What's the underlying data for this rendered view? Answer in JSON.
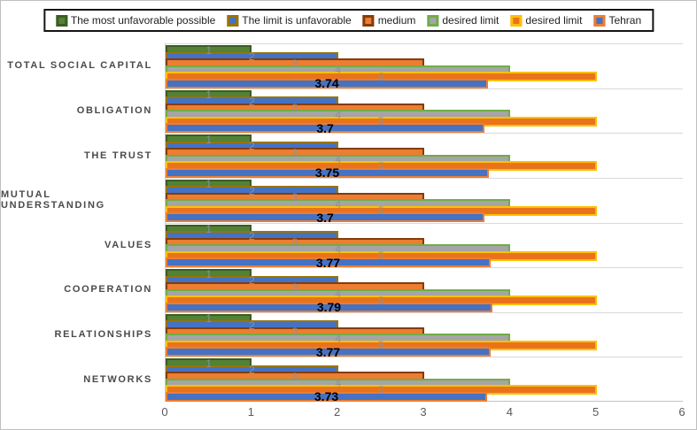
{
  "chart_data": {
    "type": "bar",
    "orientation": "horizontal",
    "title": "",
    "xlabel": "",
    "ylabel": "",
    "categories": [
      "TOTAL SOCIAL CAPITAL",
      "OBLIGATION",
      "THE TRUST",
      "MUTUAL UNDERSTANDING",
      "VALUES",
      "COOPERATION",
      "RELATIONSHIPS",
      "NETWORKS"
    ],
    "series": [
      {
        "name": "The most unfavorable possible",
        "fill": "#538135",
        "border": "#3B5D23",
        "label_style": "gray",
        "values": [
          1,
          1,
          1,
          1,
          1,
          1,
          1,
          1
        ]
      },
      {
        "name": "The limit is unfavorable",
        "fill": "#4472C4",
        "border": "#997300",
        "label_style": "gray",
        "values": [
          2,
          2,
          2,
          2,
          2,
          2,
          2,
          2
        ]
      },
      {
        "name": "medium",
        "fill": "#ED7D31",
        "border": "#843C0C",
        "label_style": "gray",
        "values": [
          3,
          3,
          3,
          3,
          3,
          3,
          3,
          3
        ]
      },
      {
        "name": "desired limit",
        "fill": "#A5A5A5",
        "border": "#70AD47",
        "label_style": "gray",
        "values": [
          4,
          4,
          4,
          4,
          4,
          4,
          4,
          4
        ]
      },
      {
        "name": "desired limit",
        "fill": "#E9731C",
        "border": "#FFC000",
        "label_style": "gray",
        "values": [
          5,
          5,
          5,
          5,
          5,
          5,
          5,
          5
        ]
      },
      {
        "name": "Tehran",
        "fill": "#4472C4",
        "border": "#ED7D31",
        "label_style": "black-bold",
        "values": [
          3.74,
          3.7,
          3.75,
          3.7,
          3.77,
          3.79,
          3.77,
          3.73
        ]
      }
    ],
    "xlim": [
      0,
      6
    ],
    "x_ticks": [
      0,
      1,
      2,
      3,
      4,
      5,
      6
    ],
    "grid": "horizontal lines between categories, vertical axis line at 0",
    "legend_position": "top",
    "data_label_position": "center"
  },
  "style": {
    "gridline_color": "#D9D9D9",
    "axis_line_color": "#C2C2C2",
    "frame_border_color": "#BFBFBF",
    "legend_border_color": "#141414",
    "category_label_color": "#4A4A4A",
    "x_tick_color": "#595959",
    "value_label_gray_color": "#8C9196",
    "tehran_label_color": "#000000",
    "background": "#FFFFFF"
  }
}
